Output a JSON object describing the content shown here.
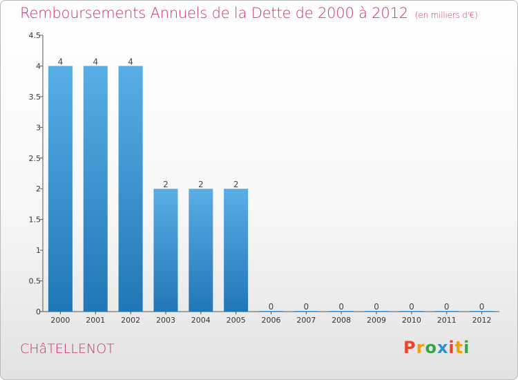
{
  "header": {
    "title": "Remboursements Annuels de la Dette de 2000 à 2012",
    "unit": "(en milliers d'€)"
  },
  "commune": "CHâTELLENOT",
  "logo": {
    "text": "Proxiti",
    "colors": [
      "#e8462c",
      "#f39c12",
      "#3aa34a",
      "#2a8fd6",
      "#e8462c",
      "#f39c12",
      "#3aa34a"
    ]
  },
  "colors": {
    "bar_light": "#5aaee6",
    "bar_dark": "#2176b5",
    "title": "#cc2e70"
  },
  "chart_data": {
    "type": "bar",
    "title": "Remboursements Annuels de la Dette de 2000 à 2012",
    "subtitle": "(en milliers d'€)",
    "categories": [
      "2000",
      "2001",
      "2002",
      "2003",
      "2004",
      "2005",
      "2006",
      "2007",
      "2008",
      "2009",
      "2010",
      "2011",
      "2012"
    ],
    "values": [
      4,
      4,
      4,
      2,
      2,
      2,
      0,
      0,
      0,
      0,
      0,
      0,
      0
    ],
    "data_labels": [
      "4",
      "4",
      "4",
      "2",
      "2",
      "2",
      "0",
      "0",
      "0",
      "0",
      "0",
      "0",
      "0"
    ],
    "yticks": [
      "0",
      "0.5",
      "1",
      "1.5",
      "2",
      "2.5",
      "3",
      "3.5",
      "4",
      "4.5"
    ],
    "ylim": [
      0,
      4.5
    ],
    "xlabel": "",
    "ylabel": "",
    "grid": false,
    "legend": "none"
  }
}
